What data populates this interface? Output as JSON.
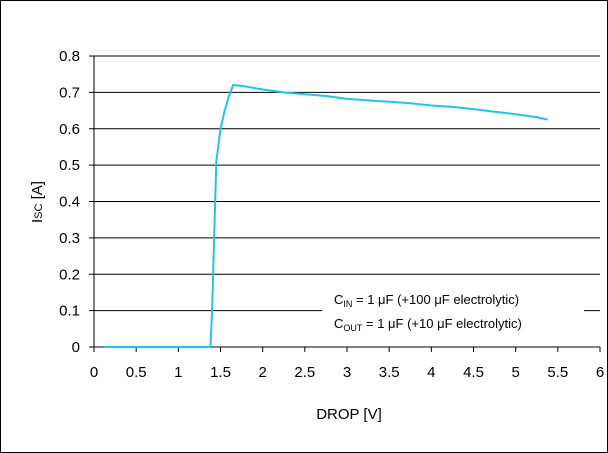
{
  "chart_data": {
    "type": "line",
    "xlabel": "DROP [V]",
    "ylabel": {
      "main": "I",
      "sub": "SC",
      "unit": " [A]"
    },
    "xlim": [
      0,
      6
    ],
    "ylim": [
      0,
      0.8
    ],
    "x_ticks": [
      "0",
      "0.5",
      "1",
      "1.5",
      "2",
      "2.5",
      "3",
      "3.5",
      "4",
      "4.5",
      "5",
      "5.5",
      "6"
    ],
    "y_ticks": [
      "0",
      "0.1",
      "0.2",
      "0.3",
      "0.4",
      "0.5",
      "0.6",
      "0.7",
      "0.8"
    ],
    "grid": "horizontal",
    "series": [
      {
        "color": "#21c4e6",
        "x": [
          0.12,
          1.38,
          1.4,
          1.45,
          1.5,
          1.55,
          1.6,
          1.65,
          1.75,
          2.0,
          2.25,
          2.5,
          2.75,
          3.0,
          3.25,
          3.5,
          3.75,
          4.0,
          4.25,
          4.5,
          4.75,
          5.0,
          5.25,
          5.38
        ],
        "y": [
          0.0,
          0.0,
          0.1,
          0.51,
          0.6,
          0.65,
          0.69,
          0.72,
          0.718,
          0.708,
          0.7,
          0.695,
          0.69,
          0.682,
          0.678,
          0.674,
          0.67,
          0.664,
          0.66,
          0.654,
          0.647,
          0.64,
          0.632,
          0.625
        ]
      }
    ],
    "annotations": [
      {
        "main": "C",
        "sub": "IN",
        "rest": " = 1 μF (+100 μF electrolytic)"
      },
      {
        "main": "C",
        "sub": "OUT",
        "rest": " = 1 μF (+10 μF electrolytic)"
      }
    ]
  }
}
